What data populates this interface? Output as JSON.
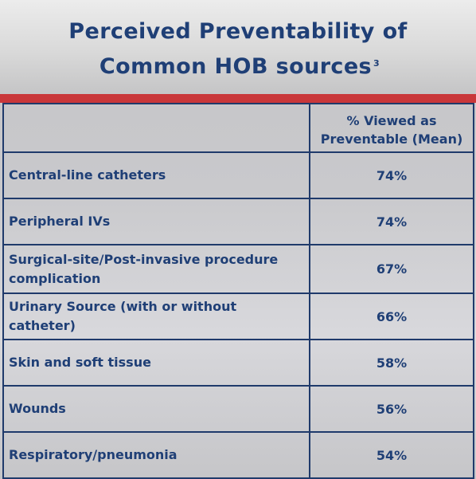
{
  "title": {
    "line1": "Perceived Preventability of",
    "line2": "Common HOB sources",
    "superscript": "3"
  },
  "table": {
    "column_headers": [
      "",
      "% Viewed as Preventable (Mean)"
    ],
    "rows": [
      {
        "source": "Central-line catheters",
        "value": "74%"
      },
      {
        "source": "Peripheral IVs",
        "value": "74%"
      },
      {
        "source": "Surgical-site/Post-invasive procedure complication",
        "value": "67%"
      },
      {
        "source": "Urinary Source (with or without catheter)",
        "value": "66%"
      },
      {
        "source": "Skin and soft tissue",
        "value": "58%"
      },
      {
        "source": "Wounds",
        "value": "56%"
      },
      {
        "source": "Respiratory/pneumonia",
        "value": "54%"
      }
    ]
  },
  "colors": {
    "title_text": "#1f3f76",
    "accent_bar": "#c9373a",
    "table_border": "#1f3a6b"
  }
}
